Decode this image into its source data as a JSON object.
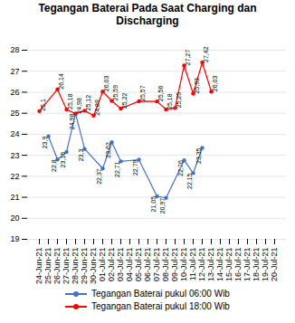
{
  "chart_data": {
    "type": "line",
    "title": "Tegangan Baterai Pada Saat Charging dan\nDischarging",
    "categories": [
      "24-Jun-21",
      "25-Jun-21",
      "26-Jun-21",
      "27-Jun-21",
      "28-Jun-21",
      "29-Jun-21",
      "30-Jun-21",
      "01-Jul-21",
      "02-Jul-21",
      "03-Jul-21",
      "04-Jul-21",
      "05-Jul-21",
      "06-Jul-21",
      "07-Jul-21",
      "08-Jul-21",
      "09-Jul-21",
      "10-Jul-21",
      "11-Jul-21",
      "12-Jul-21",
      "13-Jul-21",
      "14-Jul-21",
      "15-Jul-21",
      "16-Jul-21",
      "17-Jul-21",
      "18-Jul-21",
      "19-Jul-21",
      "20-Jul-21"
    ],
    "series": [
      {
        "name": "Tegangan Baterai pukul 06:00 Wib",
        "color": "#4472C4",
        "marker": "circle",
        "values": [
          null,
          23.9,
          22.8,
          23.16,
          24.98,
          23.3,
          null,
          22.37,
          23.62,
          22.71,
          null,
          22.79,
          null,
          21.05,
          20.97,
          null,
          22.76,
          22.15,
          23.35,
          null,
          null,
          null,
          null,
          null,
          null,
          null,
          null
        ],
        "value_labels": [
          null,
          "23,9",
          "22,8",
          "23,16",
          "24,98",
          "23,3",
          null,
          "22,37",
          "23,62",
          "22,71",
          null,
          "22,79",
          null,
          "21,05",
          "20,97",
          null,
          "22,76",
          "22,15",
          "23,35",
          null,
          null,
          null,
          null,
          null,
          null,
          null,
          null
        ]
      },
      {
        "name": "Tegangan Baterai pukul 18:00 Wib",
        "color": "#FF0000",
        "marker": "circle",
        "values": [
          25.1,
          null,
          26.14,
          25.18,
          24.98,
          25.12,
          24.89,
          26.03,
          25.59,
          25.22,
          null,
          25.57,
          null,
          25.56,
          25.18,
          25.25,
          27.27,
          25.93,
          27.42,
          26.03,
          null,
          null,
          null,
          null,
          null,
          null,
          null
        ],
        "value_labels": [
          "25,1",
          null,
          "26,14",
          "25,18",
          "24,98",
          "25,12",
          "24,89",
          "26,03",
          "25,59",
          "25,22",
          null,
          "25,57",
          null,
          "25,56",
          "25,18",
          "25,25",
          "27,27",
          "25,93",
          "27,42",
          "26,03",
          null,
          null,
          null,
          null,
          null,
          null,
          null
        ]
      }
    ],
    "ylim": [
      19,
      28
    ],
    "yticks": [
      19,
      20,
      21,
      22,
      23,
      24,
      25,
      26,
      27,
      28
    ],
    "grid": true,
    "data_labels": true,
    "legend": "bottom"
  }
}
